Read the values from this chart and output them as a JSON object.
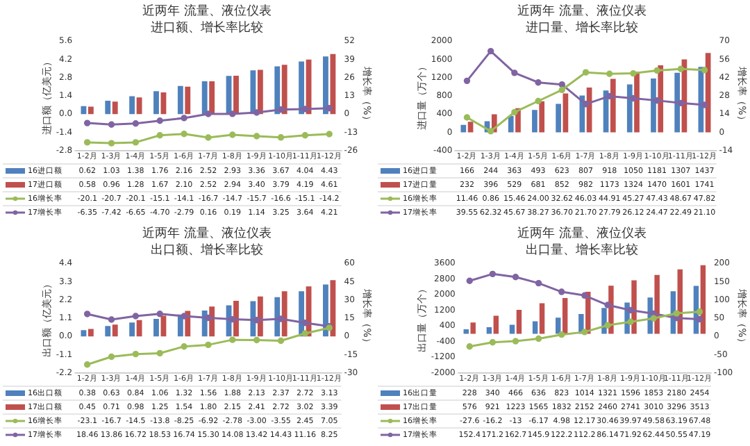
{
  "chart_data": [
    {
      "type": "bar",
      "title": "近两年 流量、液位仪表",
      "subtitle": "进口额、增长率比较",
      "ylabel": "进口额（亿美元）",
      "y2label": "增长率（%）",
      "legend": "bottom",
      "marker": "circle",
      "grid": false,
      "categories": [
        "1-2月",
        "1-3月",
        "1-4月",
        "1-5月",
        "1-6月",
        "1-7月",
        "1-8月",
        "1-9月",
        "1-10月",
        "1-11月",
        "1-12月"
      ],
      "ylim": [
        -2.8,
        5.6
      ],
      "yticks": [
        -2.8,
        -1.4,
        {
          "value": 0,
          "label": "0.0"
        },
        1.4,
        2.8,
        4.2,
        5.6
      ],
      "y2lim": [
        -26,
        52
      ],
      "y2ticks": [
        -26,
        -13,
        0,
        13,
        26,
        39,
        52
      ],
      "series": [
        {
          "name": "16进口额",
          "color": "#4f81bd",
          "values": [
            0.62,
            1.03,
            1.38,
            1.76,
            2.16,
            2.52,
            2.93,
            3.36,
            3.67,
            4.04,
            4.43
          ],
          "value_labels": [
            "0.62",
            "1.03",
            "1.38",
            "1.76",
            "2.16",
            "2.52",
            "2.93",
            "3.36",
            "3.67",
            "4.04",
            "4.43"
          ]
        },
        {
          "name": "17进口额",
          "color": "#c0504d",
          "values": [
            0.58,
            0.96,
            1.28,
            1.67,
            2.1,
            2.52,
            2.94,
            3.4,
            3.79,
            4.19,
            4.61
          ],
          "value_labels": [
            "0.58",
            "0.96",
            "1.28",
            "1.67",
            "2.10",
            "2.52",
            "2.94",
            "3.40",
            "3.79",
            "4.19",
            "4.61"
          ]
        },
        {
          "name": "16增长率",
          "type": "line",
          "axis": "y2",
          "color": "#9bbb59",
          "values": [
            -20.1,
            -20.7,
            -20.1,
            -15.1,
            -14.1,
            -16.7,
            -14.7,
            -15.7,
            -16.6,
            -15.1,
            -14.2
          ],
          "value_labels": [
            "-20.1",
            "-20.7",
            "-20.1",
            "-15.1",
            "-14.1",
            "-16.7",
            "-14.7",
            "-15.7",
            "-16.6",
            "-15.1",
            "-14.2"
          ]
        },
        {
          "name": "17增长率",
          "type": "line",
          "axis": "y2",
          "color": "#8064a2",
          "values": [
            -6.35,
            -7.42,
            -6.65,
            -4.7,
            -2.79,
            0.16,
            0.19,
            1.14,
            3.25,
            3.64,
            4.21
          ],
          "value_labels": [
            "-6.35",
            "-7.42",
            "-6.65",
            "-4.70",
            "-2.79",
            "0.16",
            "0.19",
            "1.14",
            "3.25",
            "3.64",
            "4.21"
          ]
        }
      ]
    },
    {
      "type": "bar",
      "title": "近两年 流量、液位仪表",
      "subtitle": "进口量、增长率比较",
      "ylabel": "进口量（万个）",
      "y2label": "增长率（%）",
      "legend": "bottom",
      "marker": "circle",
      "grid": false,
      "categories": [
        "1-2月",
        "1-3月",
        "1-4月",
        "1-5月",
        "1-6月",
        "1-7月",
        "1-8月",
        "1-9月",
        "1-10月",
        "1-11月",
        "1-12月"
      ],
      "ylim": [
        -400,
        2000
      ],
      "yticks": [
        -400,
        0,
        400,
        800,
        1200,
        1600,
        2000
      ],
      "y2lim": [
        -14,
        70
      ],
      "y2ticks": [
        -14,
        0,
        14,
        28,
        42,
        56,
        70
      ],
      "series": [
        {
          "name": "16进口量",
          "color": "#4f81bd",
          "values": [
            166,
            244,
            363,
            493,
            623,
            807,
            918,
            1050,
            1181,
            1307,
            1437
          ],
          "value_labels": [
            "166",
            "244",
            "363",
            "493",
            "623",
            "807",
            "918",
            "1050",
            "1181",
            "1307",
            "1437"
          ]
        },
        {
          "name": "17进口量",
          "color": "#c0504d",
          "values": [
            232,
            396,
            529,
            681,
            852,
            982,
            1173,
            1324,
            1470,
            1601,
            1741
          ],
          "value_labels": [
            "232",
            "396",
            "529",
            "681",
            "852",
            "982",
            "1173",
            "1324",
            "1470",
            "1601",
            "1741"
          ]
        },
        {
          "name": "16增长率",
          "type": "line",
          "axis": "y2",
          "color": "#9bbb59",
          "values": [
            11.46,
            0.86,
            15.46,
            24,
            32.62,
            46.03,
            44.91,
            45.27,
            47.43,
            48.67,
            47.82
          ],
          "value_labels": [
            "11.46",
            "0.86",
            "15.46",
            "24.00",
            "32.62",
            "46.03",
            "44.91",
            "45.27",
            "47.43",
            "48.67",
            "47.82"
          ]
        },
        {
          "name": "17增长率",
          "type": "line",
          "axis": "y2",
          "color": "#8064a2",
          "values": [
            39.55,
            62.32,
            45.67,
            38.27,
            36.7,
            21.7,
            27.79,
            26.12,
            24.47,
            22.49,
            21.1
          ],
          "value_labels": [
            "39.55",
            "62.32",
            "45.67",
            "38.27",
            "36.70",
            "21.70",
            "27.79",
            "26.12",
            "24.47",
            "22.49",
            "21.10"
          ]
        }
      ]
    },
    {
      "type": "bar",
      "title": "近两年 流量、液位仪表",
      "subtitle": "出口额、增长率比较",
      "ylabel": "出口额（亿美元）",
      "y2label": "增长率（%）",
      "legend": "bottom",
      "marker": "circle",
      "grid": false,
      "categories": [
        "1-2月",
        "1-3月",
        "1-4月",
        "1-5月",
        "1-6月",
        "1-7月",
        "1-8月",
        "1-9月",
        "1-10月",
        "1-11月",
        "1-12月"
      ],
      "ylim": [
        -2.2,
        4.4
      ],
      "yticks": [
        -2.2,
        -1.1,
        {
          "value": 0,
          "label": "0.0"
        },
        1.1,
        2.2,
        3.3,
        4.4
      ],
      "y2lim": [
        -30,
        60
      ],
      "y2ticks": [
        -30,
        -15,
        0,
        15,
        30,
        45,
        60
      ],
      "series": [
        {
          "name": "16出口额",
          "color": "#4f81bd",
          "values": [
            0.38,
            0.63,
            0.84,
            1.06,
            1.32,
            1.56,
            1.88,
            2.13,
            2.37,
            2.72,
            3.13
          ],
          "value_labels": [
            "0.38",
            "0.63",
            "0.84",
            "1.06",
            "1.32",
            "1.56",
            "1.88",
            "2.13",
            "2.37",
            "2.72",
            "3.13"
          ]
        },
        {
          "name": "17出口额",
          "color": "#c0504d",
          "values": [
            0.45,
            0.71,
            0.98,
            1.25,
            1.54,
            1.8,
            2.15,
            2.41,
            2.72,
            3.02,
            3.39
          ],
          "value_labels": [
            "0.45",
            "0.71",
            "0.98",
            "1.25",
            "1.54",
            "1.80",
            "2.15",
            "2.41",
            "2.72",
            "3.02",
            "3.39"
          ]
        },
        {
          "name": "16增长率",
          "type": "line",
          "axis": "y2",
          "color": "#9bbb59",
          "values": [
            -23.1,
            -16.7,
            -14.5,
            -13.8,
            -8.25,
            -6.92,
            -2.78,
            -3,
            -3.55,
            2.45,
            7.05
          ],
          "value_labels": [
            "-23.1",
            "-16.7",
            "-14.5",
            "-13.8",
            "-8.25",
            "-6.92",
            "-2.78",
            "-3.00",
            "-3.55",
            "2.45",
            "7.05"
          ]
        },
        {
          "name": "17增长率",
          "type": "line",
          "axis": "y2",
          "color": "#8064a2",
          "values": [
            18.46,
            13.86,
            16.72,
            18.53,
            16.74,
            15.3,
            14.08,
            13.42,
            14.43,
            11.16,
            8.25
          ],
          "value_labels": [
            "18.46",
            "13.86",
            "16.72",
            "18.53",
            "16.74",
            "15.30",
            "14.08",
            "13.42",
            "14.43",
            "11.16",
            "8.25"
          ]
        }
      ]
    },
    {
      "type": "bar",
      "title": "近两年 流量、液位仪表",
      "subtitle": "出口量、增长率比较",
      "ylabel": "出口量（万个）",
      "y2label": "增长率（%）",
      "legend": "bottom",
      "marker": "circle",
      "grid": false,
      "categories": [
        "1-2月",
        "1-3月",
        "1-4月",
        "1-5月",
        "1-6月",
        "1-7月",
        "1-8月",
        "1-9月",
        "1-10月",
        "1-11月",
        "1-12月"
      ],
      "ylim": [
        -2000,
        3600
      ],
      "yticks": [
        -2000,
        -1200,
        -400,
        400,
        1200,
        2000,
        2800,
        3600
      ],
      "y2lim": [
        -100,
        200
      ],
      "y2ticks": [
        -100,
        -50,
        0,
        50,
        100,
        150,
        200
      ],
      "series": [
        {
          "name": "16出口量",
          "color": "#4f81bd",
          "values": [
            228,
            340,
            466,
            636,
            823,
            1014,
            1321,
            1596,
            1853,
            2180,
            2454
          ],
          "value_labels": [
            "228",
            "340",
            "466",
            "636",
            "823",
            "1014",
            "1321",
            "1596",
            "1853",
            "2180",
            "2454"
          ]
        },
        {
          "name": "17出口量",
          "color": "#c0504d",
          "values": [
            576,
            921,
            1223,
            1565,
            1832,
            2152,
            2460,
            2741,
            3010,
            3296,
            3513
          ],
          "value_labels": [
            "576",
            "921",
            "1223",
            "1565",
            "1832",
            "2152",
            "2460",
            "2741",
            "3010",
            "3296",
            "3513"
          ]
        },
        {
          "name": "16增长率",
          "type": "line",
          "axis": "y2",
          "color": "#9bbb59",
          "values": [
            -27.6,
            -16.2,
            -13,
            -6.17,
            4.98,
            12.17,
            30.46,
            39.97,
            49.58,
            63.19,
            67.48
          ],
          "value_labels": [
            "-27.6",
            "-16.2",
            "-13",
            "-6.17",
            "4.98",
            "12.17",
            "30.46",
            "39.97",
            "49.58",
            "63.19",
            "67.48"
          ]
        },
        {
          "name": "17增长率",
          "type": "line",
          "axis": "y2",
          "color": "#8064a2",
          "values": [
            152.4,
            171.2,
            162.7,
            145.9,
            122.2,
            112.2,
            86.14,
            71.92,
            62.44,
            50.55,
            47.19
          ],
          "value_labels": [
            "152.4",
            "171.2",
            "162.7",
            "145.9",
            "122.2",
            "112.2",
            "86.14",
            "71.92",
            "62.44",
            "50.55",
            "47.19"
          ]
        }
      ]
    }
  ]
}
